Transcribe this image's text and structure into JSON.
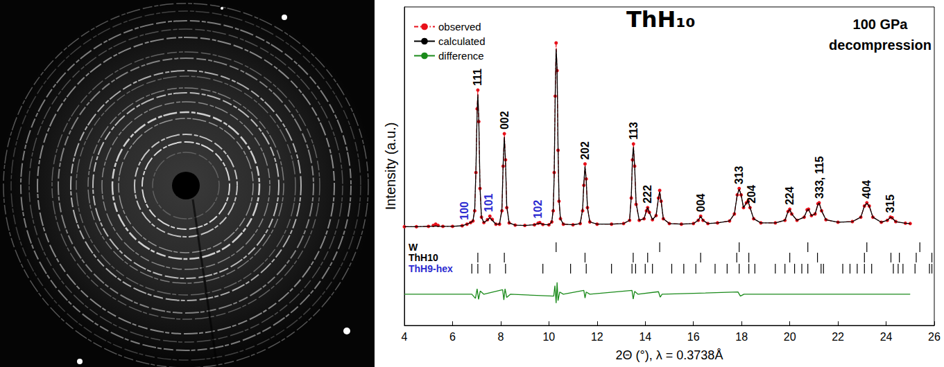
{
  "chart_data": {
    "type": "line",
    "title": "ThH₁₀",
    "subtitle": [
      "100 GPa",
      "decompression"
    ],
    "x_label": "2Θ (°), λ = 0.3738Å",
    "y_label": "Intensity (a.u.)",
    "xlim": [
      4,
      26
    ],
    "xticks": [
      4,
      6,
      8,
      10,
      12,
      14,
      16,
      18,
      20,
      22,
      24,
      26
    ],
    "ylim": [
      0,
      100
    ],
    "tick_labels": "x",
    "grid": false,
    "legend": "upper left",
    "series": [
      {
        "name": "observed",
        "color": "#e8101a",
        "marker": "circle",
        "line_style": "dashdot",
        "x": [
          4.0,
          4.5,
          5.0,
          5.2,
          5.3,
          5.4,
          5.6,
          6.0,
          6.4,
          6.6,
          6.75,
          6.85,
          6.92,
          6.97,
          7.02,
          7.05,
          7.09,
          7.14,
          7.2,
          7.3,
          7.45,
          7.55,
          7.65,
          7.8,
          7.95,
          8.05,
          8.1,
          8.15,
          8.2,
          8.25,
          8.35,
          8.6,
          9.0,
          9.4,
          9.55,
          9.62,
          9.75,
          10.0,
          10.12,
          10.18,
          10.22,
          10.26,
          10.3,
          10.34,
          10.38,
          10.42,
          10.48,
          10.6,
          11.0,
          11.3,
          11.4,
          11.45,
          11.5,
          11.55,
          11.6,
          11.7,
          12.0,
          12.6,
          13.1,
          13.35,
          13.42,
          13.47,
          13.51,
          13.56,
          13.62,
          13.75,
          13.95,
          14.05,
          14.1,
          14.17,
          14.3,
          14.45,
          14.55,
          14.6,
          14.66,
          14.75,
          15.0,
          15.5,
          16.0,
          16.2,
          16.3,
          16.4,
          16.6,
          17.0,
          17.5,
          17.7,
          17.82,
          17.9,
          17.98,
          18.08,
          18.2,
          18.27,
          18.35,
          18.5,
          18.8,
          19.4,
          19.8,
          19.93,
          20.0,
          20.08,
          20.3,
          20.6,
          20.72,
          20.78,
          20.9,
          21.05,
          21.17,
          21.22,
          21.32,
          21.5,
          22.0,
          22.6,
          22.95,
          23.1,
          23.2,
          23.3,
          23.45,
          23.8,
          24.05,
          24.18,
          24.25,
          24.4,
          24.8,
          25.0
        ],
        "values": [
          31.0,
          31.0,
          31.1,
          31.4,
          31.8,
          31.4,
          31.1,
          31.1,
          31.3,
          31.8,
          32.3,
          32.8,
          36,
          48,
          68,
          73.9,
          64,
          43,
          34,
          32.3,
          33.2,
          34.3,
          33.3,
          31.8,
          31.8,
          36,
          50,
          60.2,
          52,
          37,
          32.2,
          31.5,
          31.4,
          31.6,
          32.1,
          32.3,
          31.7,
          31.6,
          32.5,
          36,
          48,
          72,
          88.7,
          80,
          55,
          39,
          33.5,
          31.8,
          31.6,
          32,
          36,
          44,
          50.7,
          46,
          37,
          32.5,
          31.8,
          31.8,
          32,
          33,
          40,
          52,
          57,
          50,
          38,
          33,
          33.5,
          36,
          37,
          35.5,
          33.2,
          34.5,
          40,
          42.4,
          39,
          33.5,
          32,
          31.8,
          32,
          33,
          34.3,
          33,
          32,
          32.2,
          32.8,
          35,
          41,
          43,
          41,
          37,
          38.5,
          39,
          37,
          33.5,
          32.2,
          32.2,
          33,
          35.8,
          36.5,
          35,
          33,
          34,
          36.3,
          36.5,
          34.5,
          35,
          38.2,
          38.5,
          36,
          33.2,
          32.4,
          32.6,
          34,
          37.5,
          38.5,
          37.5,
          34,
          32.4,
          33,
          34,
          33.8,
          32.6,
          32.1,
          32.0
        ]
      },
      {
        "name": "calculated",
        "color": "#000000",
        "marker": "none",
        "line_style": "solid",
        "x": [
          4.0,
          4.5,
          5.0,
          5.2,
          5.3,
          5.4,
          5.6,
          6.0,
          6.4,
          6.6,
          6.75,
          6.85,
          6.92,
          6.97,
          7.02,
          7.05,
          7.09,
          7.14,
          7.2,
          7.3,
          7.45,
          7.55,
          7.65,
          7.8,
          7.95,
          8.05,
          8.1,
          8.15,
          8.2,
          8.25,
          8.35,
          8.6,
          9.0,
          9.4,
          9.55,
          9.62,
          9.75,
          10.0,
          10.12,
          10.18,
          10.22,
          10.26,
          10.3,
          10.34,
          10.38,
          10.42,
          10.48,
          10.6,
          11.0,
          11.3,
          11.4,
          11.45,
          11.5,
          11.55,
          11.6,
          11.7,
          12.0,
          12.6,
          13.1,
          13.35,
          13.42,
          13.47,
          13.51,
          13.56,
          13.62,
          13.75,
          13.95,
          14.05,
          14.1,
          14.17,
          14.3,
          14.45,
          14.55,
          14.6,
          14.66,
          14.75,
          15.0,
          15.5,
          16.0,
          16.2,
          16.3,
          16.4,
          16.6,
          17.0,
          17.5,
          17.7,
          17.82,
          17.9,
          17.98,
          18.08,
          18.2,
          18.27,
          18.35,
          18.5,
          18.8,
          19.4,
          19.8,
          19.93,
          20.0,
          20.08,
          20.3,
          20.6,
          20.72,
          20.78,
          20.9,
          21.05,
          21.17,
          21.22,
          21.32,
          21.5,
          22.0,
          22.6,
          22.95,
          23.1,
          23.2,
          23.3,
          23.45,
          23.8,
          24.05,
          24.18,
          24.25,
          24.4,
          24.8,
          25.0
        ],
        "values": [
          31.0,
          31.0,
          31.1,
          31.1,
          31.2,
          31.1,
          31.1,
          31.1,
          31.3,
          31.8,
          32.3,
          32.9,
          36.5,
          48.5,
          67,
          72.5,
          64.5,
          43.5,
          34,
          32.3,
          33.1,
          33.8,
          33.0,
          31.8,
          31.8,
          36.5,
          50.5,
          59.2,
          51,
          37.5,
          32.2,
          31.5,
          31.4,
          31.6,
          32.0,
          32.1,
          31.7,
          31.6,
          32.5,
          36.5,
          47,
          71,
          86.8,
          81,
          56,
          39.5,
          33.5,
          31.8,
          31.6,
          32,
          36.5,
          44.5,
          50.0,
          45.5,
          37,
          32.5,
          31.8,
          31.8,
          32,
          33,
          40.5,
          52.5,
          56,
          50,
          38.5,
          33,
          33.5,
          36,
          37,
          35.5,
          33.2,
          34.5,
          40,
          42,
          39,
          33.5,
          32,
          31.8,
          32,
          33,
          34.2,
          33,
          32,
          32.2,
          32.8,
          35,
          41,
          42.8,
          41,
          37,
          38.5,
          39,
          37,
          33.5,
          32.2,
          32.2,
          33,
          35.8,
          36.4,
          35,
          33,
          34,
          36.2,
          36.4,
          34.5,
          35,
          38,
          38.4,
          36,
          33.2,
          32.4,
          32.6,
          34,
          37.5,
          38.3,
          37.5,
          34,
          32.4,
          33,
          34,
          33.7,
          32.6,
          32.1,
          32.0
        ]
      },
      {
        "name": "difference",
        "color": "#1a8a1a",
        "marker": "none",
        "line_style": "solid",
        "x": [
          4.0,
          6.8,
          6.95,
          7.02,
          7.08,
          7.15,
          7.3,
          8.08,
          8.13,
          8.18,
          8.25,
          8.4,
          10.2,
          10.25,
          10.3,
          10.34,
          10.38,
          10.45,
          10.6,
          11.45,
          11.5,
          11.55,
          11.7,
          13.45,
          13.5,
          13.56,
          13.7,
          14.55,
          14.62,
          14.7,
          17.85,
          17.95,
          18.1,
          25.0
        ],
        "values": [
          9.8,
          9.8,
          8.5,
          11.5,
          8.2,
          10.8,
          9.8,
          11.2,
          8.0,
          11.5,
          8.8,
          9.8,
          9.2,
          12.5,
          7.0,
          13.5,
          7.8,
          10.5,
          9.8,
          11,
          8.6,
          10.5,
          9.8,
          11,
          8.3,
          10.7,
          9.8,
          10.6,
          8.9,
          9.8,
          10.5,
          9.2,
          9.8,
          9.8
        ]
      }
    ],
    "peak_labels": [
      {
        "label": "100",
        "x": 6.5,
        "color": "#2a2ad0"
      },
      {
        "label": "111",
        "x": 7.05,
        "color": "#000000"
      },
      {
        "label": "101",
        "x": 7.51,
        "color": "#2a2ad0"
      },
      {
        "label": "002",
        "x": 8.15,
        "color": "#000000"
      },
      {
        "label": "102",
        "x": 9.53,
        "color": "#2a2ad0"
      },
      {
        "label": "202",
        "x": 11.5,
        "color": "#000000"
      },
      {
        "label": "113",
        "x": 13.51,
        "color": "#000000"
      },
      {
        "label": "222",
        "x": 14.1,
        "color": "#000000"
      },
      {
        "label": "004",
        "x": 16.3,
        "color": "#000000"
      },
      {
        "label": "313",
        "x": 17.9,
        "color": "#000000"
      },
      {
        "label": "204",
        "x": 18.42,
        "color": "#000000"
      },
      {
        "label": "224",
        "x": 20.0,
        "color": "#000000"
      },
      {
        "label": "333, 115",
        "x": 21.22,
        "color": "#000000"
      },
      {
        "label": "404",
        "x": 23.2,
        "color": "#000000"
      },
      {
        "label": "315",
        "x": 24.18,
        "color": "#000000"
      }
    ],
    "reflection_rows": [
      {
        "name": "W",
        "color": "#000000",
        "positions": [
          10.3,
          14.6,
          17.9,
          20.75,
          23.2,
          25.4
        ]
      },
      {
        "name": "ThH10",
        "color": "#000000",
        "positions": [
          7.05,
          8.15,
          11.5,
          13.5,
          14.1,
          16.3,
          17.8,
          18.3,
          20.0,
          21.15,
          23.1,
          24.2,
          24.55,
          25.25,
          25.9
        ]
      },
      {
        "name": "ThH9-hex",
        "color": "#2a2ad0",
        "positions": [
          6.8,
          7.05,
          7.55,
          8.2,
          9.75,
          10.9,
          11.55,
          12.6,
          13.45,
          13.6,
          14.0,
          14.3,
          15.1,
          15.6,
          16.1,
          16.9,
          17.4,
          17.9,
          18.3,
          18.55,
          19.4,
          19.8,
          20.2,
          20.5,
          20.75,
          21.3,
          21.4,
          22.2,
          22.5,
          22.8,
          23.1,
          23.4,
          24.3,
          24.5,
          24.7,
          25.2,
          25.8,
          25.9
        ]
      }
    ]
  }
}
